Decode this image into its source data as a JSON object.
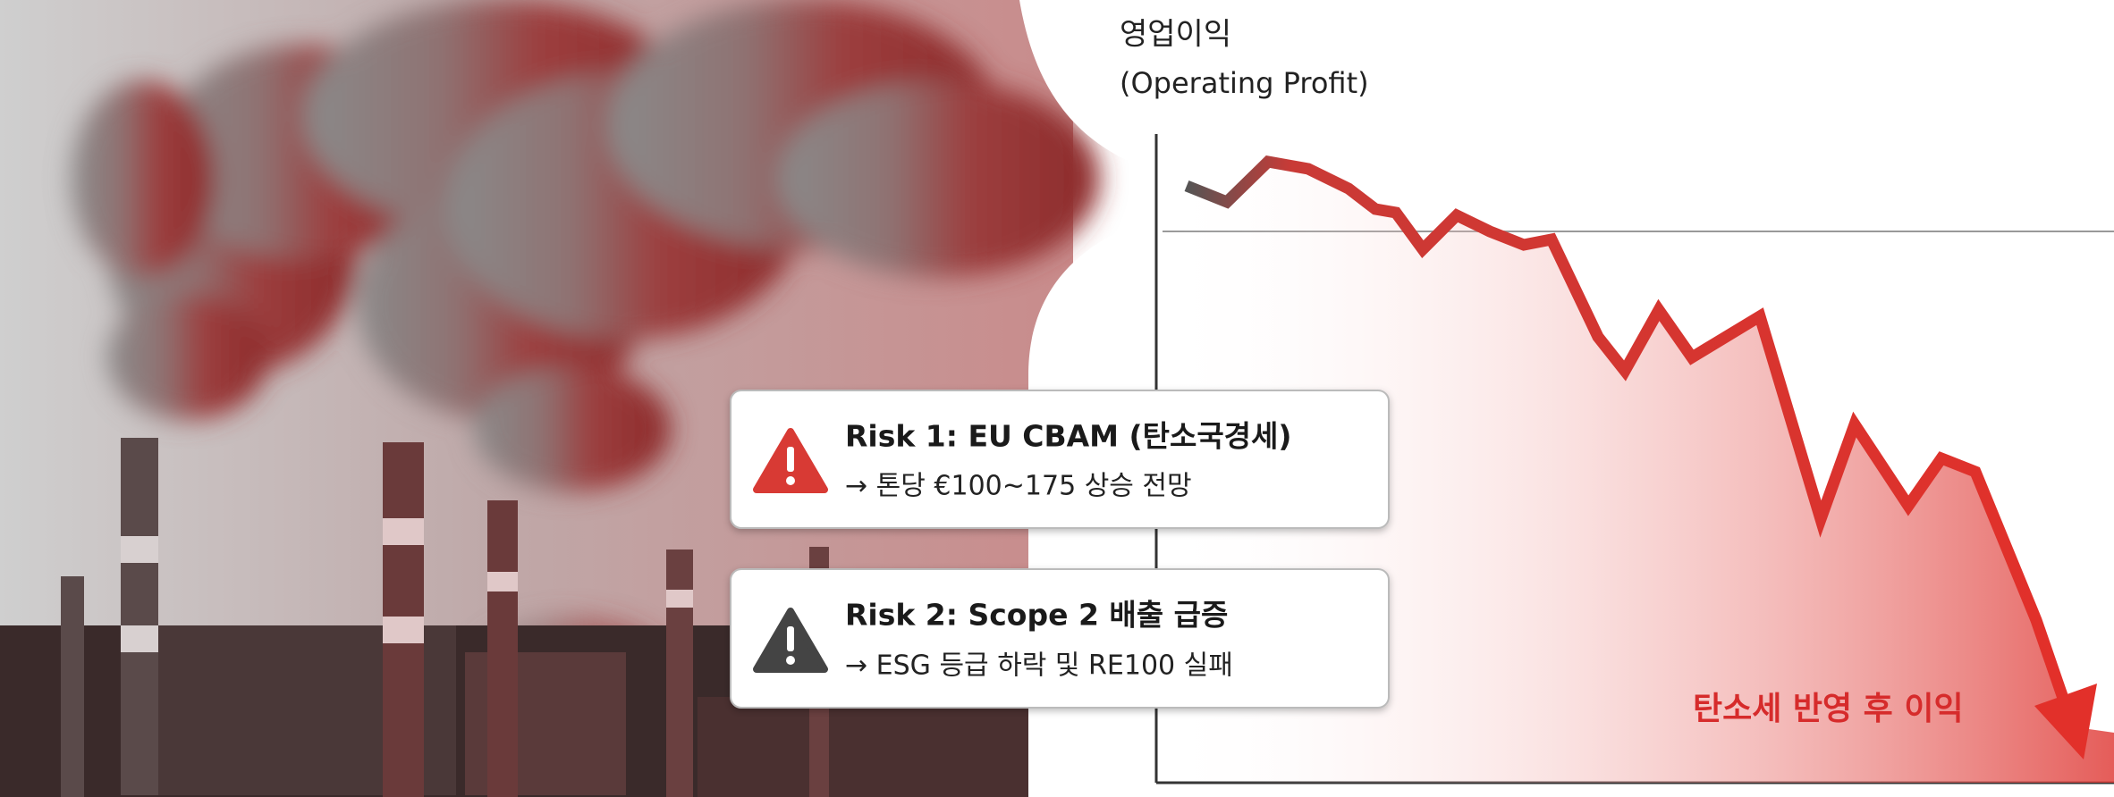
{
  "axis_label": {
    "title": "영업이익",
    "subtitle": "(Operating Profit)"
  },
  "risks": [
    {
      "title": "Risk 1: EU CBAM (탄소국경세)",
      "detail": "→ 톤당 €100~175 상승 전망"
    },
    {
      "title": "Risk 2: Scope 2 배출 급증",
      "detail": "→ ESG 등급 하락 및 RE100 실패"
    }
  ],
  "annotation": "탄소세 반영 후 이익"
}
